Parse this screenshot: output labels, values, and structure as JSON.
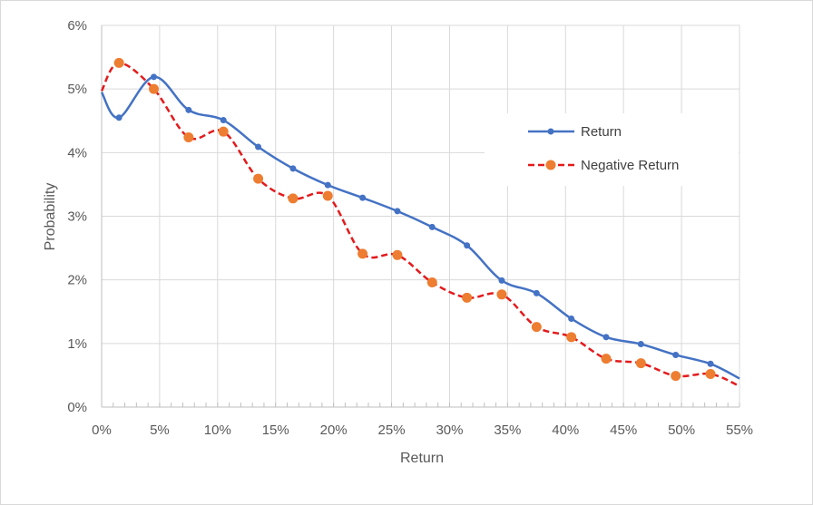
{
  "chart_data": {
    "type": "line",
    "title": "",
    "xlabel": "Return",
    "ylabel": "Probability",
    "xlim": [
      0,
      0.55
    ],
    "ylim": [
      0,
      0.06
    ],
    "x_ticks": [
      "0%",
      "5%",
      "10%",
      "15%",
      "20%",
      "25%",
      "30%",
      "35%",
      "40%",
      "45%",
      "50%",
      "55%"
    ],
    "y_ticks": [
      "0%",
      "1%",
      "2%",
      "3%",
      "4%",
      "5%",
      "6%"
    ],
    "grid": true,
    "legend_position": "right",
    "series": [
      {
        "name": "Return",
        "color": "#4472c4",
        "dash": "solid",
        "marker": "small-circle",
        "points": [
          {
            "x": 0.0,
            "y": 0.0495
          },
          {
            "x": 0.015,
            "y": 0.0455
          },
          {
            "x": 0.045,
            "y": 0.0519
          },
          {
            "x": 0.075,
            "y": 0.0467
          },
          {
            "x": 0.105,
            "y": 0.0451
          },
          {
            "x": 0.135,
            "y": 0.0409
          },
          {
            "x": 0.165,
            "y": 0.0375
          },
          {
            "x": 0.195,
            "y": 0.0349
          },
          {
            "x": 0.225,
            "y": 0.0329
          },
          {
            "x": 0.255,
            "y": 0.0308
          },
          {
            "x": 0.285,
            "y": 0.0283
          },
          {
            "x": 0.315,
            "y": 0.0254
          },
          {
            "x": 0.345,
            "y": 0.0199
          },
          {
            "x": 0.375,
            "y": 0.0179
          },
          {
            "x": 0.405,
            "y": 0.0139
          },
          {
            "x": 0.435,
            "y": 0.011
          },
          {
            "x": 0.465,
            "y": 0.0099
          },
          {
            "x": 0.495,
            "y": 0.0082
          },
          {
            "x": 0.525,
            "y": 0.0068
          },
          {
            "x": 0.55,
            "y": 0.0045
          }
        ]
      },
      {
        "name": "Negative Return",
        "color": "#e31a1c",
        "marker_color": "#ed7d31",
        "dash": "dashed",
        "marker": "large-circle",
        "points": [
          {
            "x": 0.0,
            "y": 0.0497
          },
          {
            "x": 0.015,
            "y": 0.0541
          },
          {
            "x": 0.045,
            "y": 0.05
          },
          {
            "x": 0.075,
            "y": 0.0424
          },
          {
            "x": 0.105,
            "y": 0.0433
          },
          {
            "x": 0.135,
            "y": 0.0359
          },
          {
            "x": 0.165,
            "y": 0.0328
          },
          {
            "x": 0.195,
            "y": 0.0332
          },
          {
            "x": 0.225,
            "y": 0.0241
          },
          {
            "x": 0.255,
            "y": 0.0239
          },
          {
            "x": 0.285,
            "y": 0.0196
          },
          {
            "x": 0.315,
            "y": 0.0172
          },
          {
            "x": 0.345,
            "y": 0.0177
          },
          {
            "x": 0.375,
            "y": 0.0126
          },
          {
            "x": 0.405,
            "y": 0.011
          },
          {
            "x": 0.435,
            "y": 0.0076
          },
          {
            "x": 0.465,
            "y": 0.0069
          },
          {
            "x": 0.495,
            "y": 0.0049
          },
          {
            "x": 0.525,
            "y": 0.0052
          },
          {
            "x": 0.55,
            "y": 0.0033
          }
        ]
      }
    ]
  },
  "colors": {
    "grid": "#d9d9d9",
    "axis": "#bfbfbf",
    "text": "#595959"
  }
}
